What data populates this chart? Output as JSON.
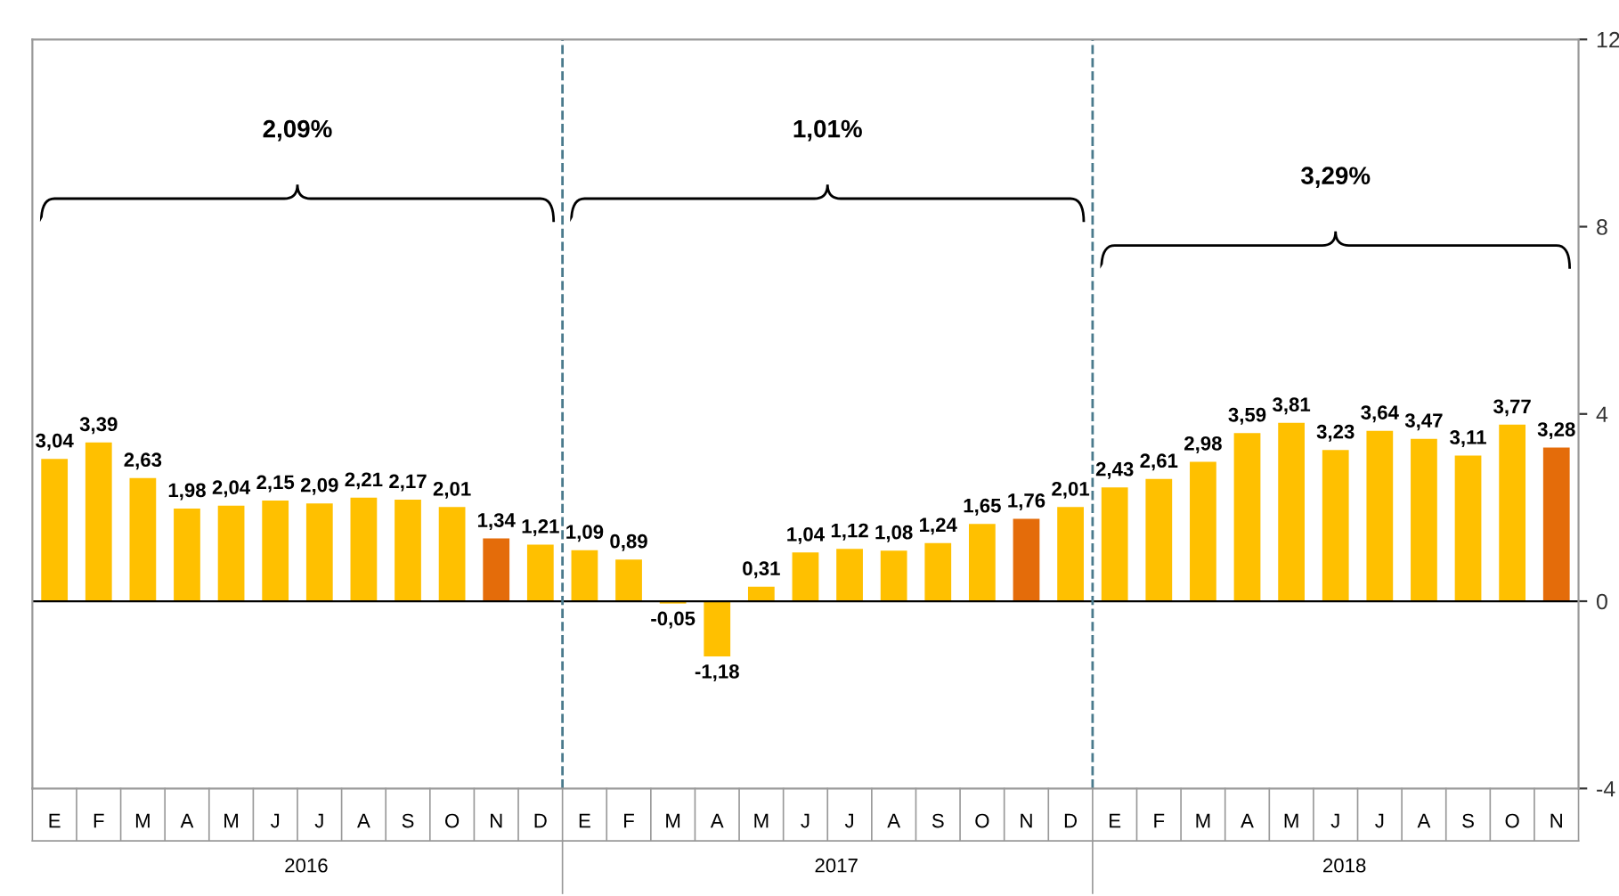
{
  "chart_data": {
    "type": "bar",
    "categories": [
      "E",
      "F",
      "M",
      "A",
      "M",
      "J",
      "J",
      "A",
      "S",
      "O",
      "N",
      "D",
      "E",
      "F",
      "M",
      "A",
      "M",
      "J",
      "J",
      "A",
      "S",
      "O",
      "N",
      "D",
      "E",
      "F",
      "M",
      "A",
      "M",
      "J",
      "J",
      "A",
      "S",
      "O",
      "N"
    ],
    "values": [
      3.04,
      3.39,
      2.63,
      1.98,
      2.04,
      2.15,
      2.09,
      2.21,
      2.17,
      2.01,
      1.34,
      1.21,
      1.09,
      0.89,
      -0.05,
      -1.18,
      0.31,
      1.04,
      1.12,
      1.08,
      1.24,
      1.65,
      1.76,
      2.01,
      2.43,
      2.61,
      2.98,
      3.59,
      3.81,
      3.23,
      3.64,
      3.47,
      3.11,
      3.77,
      3.28
    ],
    "value_labels": [
      "3,04",
      "3,39",
      "2,63",
      "1,98",
      "2,04",
      "2,15",
      "2,09",
      "2,21",
      "2,17",
      "2,01",
      "1,34",
      "1,21",
      "1,09",
      "0,89",
      "-0,05",
      "-1,18",
      "0,31",
      "1,04",
      "1,12",
      "1,08",
      "1,24",
      "1,65",
      "1,76",
      "2,01",
      "2,43",
      "2,61",
      "2,98",
      "3,59",
      "3,81",
      "3,23",
      "3,64",
      "3,47",
      "3,11",
      "3,77",
      "3,28"
    ],
    "colors": [
      "#ffc000",
      "#ffc000",
      "#ffc000",
      "#ffc000",
      "#ffc000",
      "#ffc000",
      "#ffc000",
      "#ffc000",
      "#ffc000",
      "#ffc000",
      "#e46c0a",
      "#ffc000",
      "#ffc000",
      "#ffc000",
      "#ffc000",
      "#ffc000",
      "#ffc000",
      "#ffc000",
      "#ffc000",
      "#ffc000",
      "#ffc000",
      "#ffc000",
      "#e46c0a",
      "#ffc000",
      "#ffc000",
      "#ffc000",
      "#ffc000",
      "#ffc000",
      "#ffc000",
      "#ffc000",
      "#ffc000",
      "#ffc000",
      "#ffc000",
      "#ffc000",
      "#e46c0a"
    ],
    "ylim": [
      -4,
      12
    ],
    "yticks": [
      -4,
      0,
      4,
      8,
      12
    ],
    "annotations": [
      "2,09%",
      "1,01%",
      "3,29%",
      "2016",
      "2017",
      "2018"
    ],
    "grid": false
  }
}
